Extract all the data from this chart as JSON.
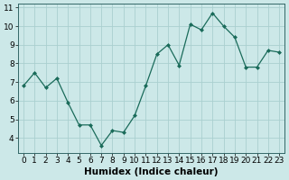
{
  "x": [
    0,
    1,
    2,
    3,
    4,
    5,
    6,
    7,
    8,
    9,
    10,
    11,
    12,
    13,
    14,
    15,
    16,
    17,
    18,
    19,
    20,
    21,
    22,
    23
  ],
  "y": [
    6.8,
    7.5,
    6.7,
    7.2,
    5.9,
    4.7,
    4.7,
    3.6,
    4.4,
    4.3,
    5.2,
    6.8,
    8.5,
    9.0,
    7.9,
    10.1,
    9.8,
    10.7,
    10.0,
    9.4,
    7.8,
    7.8,
    8.7,
    8.6
  ],
  "line_color": "#1a6b5a",
  "marker": "D",
  "marker_size": 2.0,
  "bg_color": "#cce8e8",
  "grid_color": "#aacfcf",
  "xlabel": "Humidex (Indice chaleur)",
  "xlim": [
    -0.5,
    23.5
  ],
  "ylim": [
    3.2,
    11.2
  ],
  "yticks": [
    4,
    5,
    6,
    7,
    8,
    9,
    10,
    11
  ],
  "xticks": [
    0,
    1,
    2,
    3,
    4,
    5,
    6,
    7,
    8,
    9,
    10,
    11,
    12,
    13,
    14,
    15,
    16,
    17,
    18,
    19,
    20,
    21,
    22,
    23
  ],
  "xlabel_fontsize": 7.5,
  "tick_fontsize": 6.5
}
